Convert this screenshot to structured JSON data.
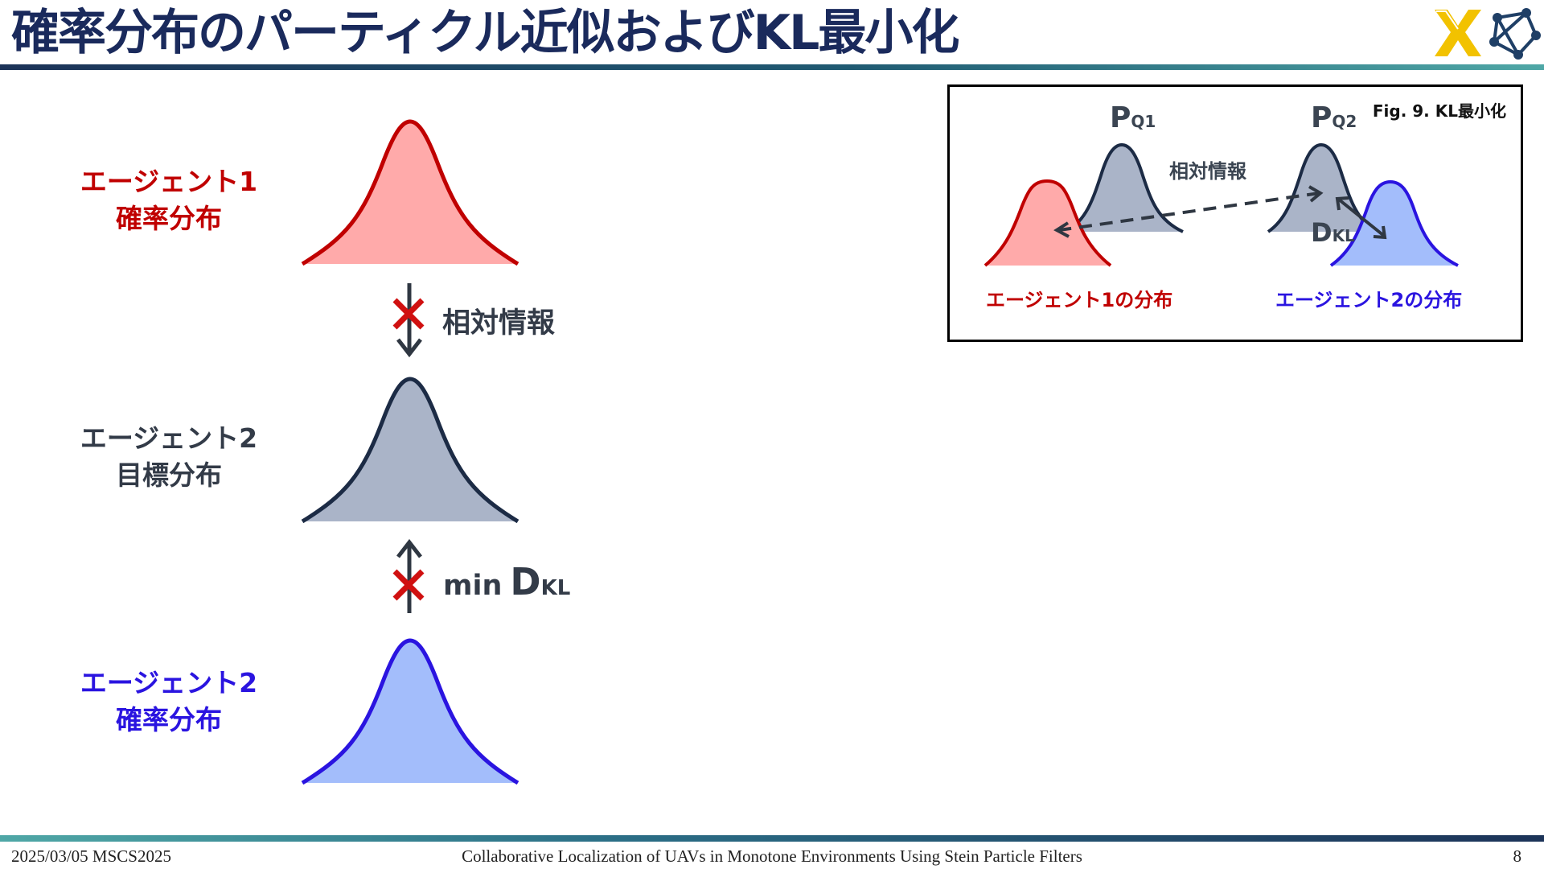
{
  "header": {
    "title": "確率分布のパーティクル近似およびKL最小化",
    "logos": [
      "x-emblem-logo",
      "network-graph-logo"
    ]
  },
  "diagram": {
    "agent1": {
      "line1": "エージェント1",
      "line2": "確率分布",
      "color": "#c00000",
      "fill": "#ffaaaa"
    },
    "agent2_target": {
      "line1": "エージェント2",
      "line2": "目標分布",
      "color": "#1c2b45",
      "fill": "#aab4c8"
    },
    "agent2": {
      "line1": "エージェント2",
      "line2": "確率分布",
      "color": "#2a14e0",
      "fill": "#a3bdfb"
    },
    "arrow1_label": "相対情報",
    "arrow2_label": {
      "min": "min",
      "D": "D",
      "sub": "KL"
    },
    "cross_color": "#d01010"
  },
  "figure": {
    "caption": "Fig. 9. KL最小化",
    "pq1": {
      "P": "P",
      "sub": "Q1"
    },
    "pq2": {
      "P": "P",
      "sub": "Q2"
    },
    "relative_info": "相対情報",
    "dkl": {
      "D": "D",
      "sub": "KL"
    },
    "label_agent1": "エージェント1の分布",
    "label_agent2": "エージェント2の分布"
  },
  "footer": {
    "left": "2025/03/05 MSCS2025",
    "center": "Collaborative Localization of UAVs in Monotone Environments Using Stein Particle Filters",
    "page": "8"
  }
}
